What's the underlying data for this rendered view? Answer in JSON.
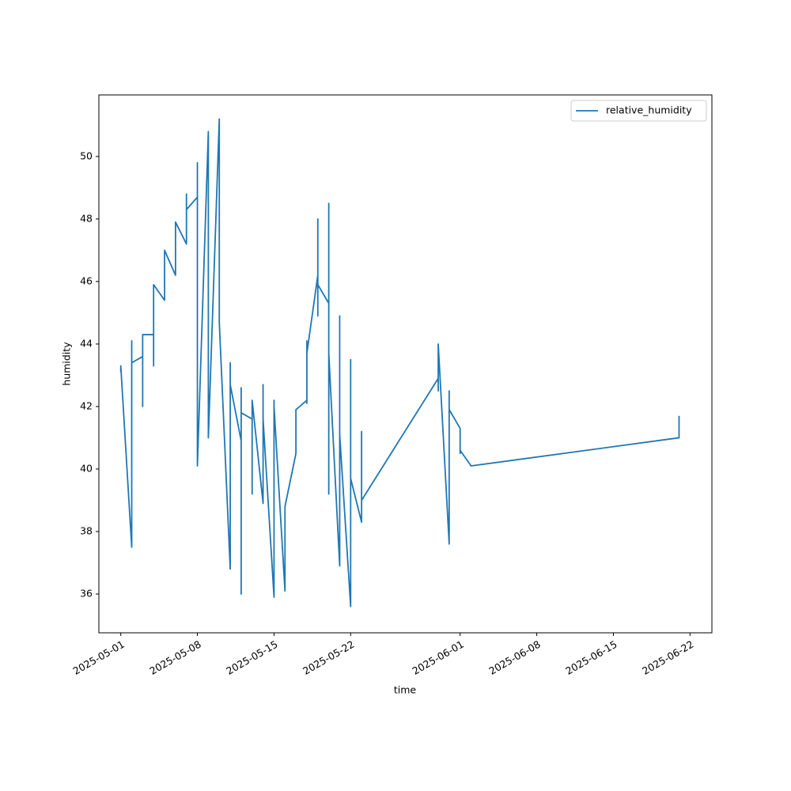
{
  "chart_data": {
    "type": "line",
    "xlabel": "time",
    "ylabel": "humidity",
    "legend": "upper right",
    "x": [
      "2025-05-01",
      "2025-05-01",
      "2025-05-02",
      "2025-05-02",
      "2025-05-02",
      "2025-05-02",
      "2025-05-02",
      "2025-05-02",
      "2025-05-02",
      "2025-05-03",
      "2025-05-03",
      "2025-05-03",
      "2025-05-03",
      "2025-05-03",
      "2025-05-03",
      "2025-05-03",
      "2025-05-04",
      "2025-05-04",
      "2025-05-04",
      "2025-05-04",
      "2025-05-04",
      "2025-05-04",
      "2025-05-04",
      "2025-05-05",
      "2025-05-05",
      "2025-05-05",
      "2025-05-05",
      "2025-05-05",
      "2025-05-06",
      "2025-05-06",
      "2025-05-06",
      "2025-05-06",
      "2025-05-06",
      "2025-05-06",
      "2025-05-07",
      "2025-05-07",
      "2025-05-07",
      "2025-05-07",
      "2025-05-07",
      "2025-05-07",
      "2025-05-07",
      "2025-05-08",
      "2025-05-08",
      "2025-05-08",
      "2025-05-08",
      "2025-05-08",
      "2025-05-08",
      "2025-05-08",
      "2025-05-08",
      "2025-05-08",
      "2025-05-09",
      "2025-05-09",
      "2025-05-09",
      "2025-05-09",
      "2025-05-09",
      "2025-05-09",
      "2025-05-09",
      "2025-05-10",
      "2025-05-10",
      "2025-05-10",
      "2025-05-10",
      "2025-05-10",
      "2025-05-11",
      "2025-05-11",
      "2025-05-11",
      "2025-05-11",
      "2025-05-11",
      "2025-05-11",
      "2025-05-12",
      "2025-05-12",
      "2025-05-12",
      "2025-05-12",
      "2025-05-12",
      "2025-05-12",
      "2025-05-13",
      "2025-05-13",
      "2025-05-13",
      "2025-05-13",
      "2025-05-13",
      "2025-05-13",
      "2025-05-13",
      "2025-05-14",
      "2025-05-14",
      "2025-05-14",
      "2025-05-14",
      "2025-05-14",
      "2025-05-14",
      "2025-05-15",
      "2025-05-15",
      "2025-05-15",
      "2025-05-15",
      "2025-05-15",
      "2025-05-16",
      "2025-05-16",
      "2025-05-17",
      "2025-05-17",
      "2025-05-18",
      "2025-05-18",
      "2025-05-18",
      "2025-05-18",
      "2025-05-18",
      "2025-05-19",
      "2025-05-19",
      "2025-05-19",
      "2025-05-19",
      "2025-05-19",
      "2025-05-19",
      "2025-05-19",
      "2025-05-19",
      "2025-05-19",
      "2025-05-20",
      "2025-05-20",
      "2025-05-20",
      "2025-05-20",
      "2025-05-20",
      "2025-05-20",
      "2025-05-20",
      "2025-05-21",
      "2025-05-21",
      "2025-05-21",
      "2025-05-21",
      "2025-05-21",
      "2025-05-21",
      "2025-05-22",
      "2025-05-22",
      "2025-05-22",
      "2025-05-22",
      "2025-05-22",
      "2025-05-23",
      "2025-05-23",
      "2025-05-23",
      "2025-05-30",
      "2025-05-30",
      "2025-05-30",
      "2025-05-30",
      "2025-05-31",
      "2025-05-31",
      "2025-05-31",
      "2025-05-31",
      "2025-05-31",
      "2025-05-31",
      "2025-05-31",
      "2025-05-31",
      "2025-06-01",
      "2025-06-01",
      "2025-06-01",
      "2025-06-01",
      "2025-06-01",
      "2025-06-01",
      "2025-06-02",
      "2025-06-21",
      "2025-06-21"
    ],
    "series": [
      {
        "name": "relative_humidity",
        "color": "#1f77b4",
        "values": [
          43.1,
          43.3,
          37.5,
          43.6,
          42.8,
          44.1,
          43.5,
          44.1,
          43.4,
          43.6,
          42.0,
          43.8,
          43.1,
          44.0,
          43.8,
          44.3,
          44.3,
          43.3,
          43.9,
          43.9,
          44.8,
          45.6,
          45.9,
          45.4,
          46.2,
          45.9,
          46.8,
          47.0,
          46.2,
          47.8,
          46.9,
          47.5,
          47.8,
          47.9,
          47.2,
          47.8,
          47.7,
          48.7,
          48.8,
          47.9,
          48.3,
          48.7,
          47.4,
          49.1,
          48.2,
          49.4,
          49.8,
          48.1,
          48.4,
          40.1,
          50.8,
          48.2,
          47.8,
          48.4,
          48.0,
          48.3,
          41.0,
          51.2,
          45.2,
          45.4,
          45.3,
          44.7,
          36.8,
          43.4,
          42.3,
          42.7,
          42.1,
          42.7,
          40.9,
          36.0,
          42.6,
          40.4,
          40.8,
          41.8,
          41.6,
          39.2,
          41.0,
          40.3,
          41.7,
          42.0,
          42.2,
          38.9,
          42.7,
          40.9,
          41.1,
          41.0,
          41.6,
          35.9,
          42.2,
          40.3,
          41.2,
          42.0,
          36.1,
          38.8,
          40.5,
          41.9,
          42.2,
          42.1,
          42.8,
          44.1,
          43.7,
          46.2,
          47.1,
          48.0,
          47.0,
          47.9,
          44.9,
          45.4,
          45.2,
          45.9,
          45.3,
          39.2,
          48.5,
          43.8,
          43.2,
          43.6,
          43.7,
          36.9,
          44.9,
          41.0,
          41.2,
          42.3,
          41.1,
          35.6,
          43.5,
          39.3,
          40.0,
          39.7,
          38.3,
          41.2,
          39.0,
          42.9,
          42.5,
          43.4,
          44.0,
          37.6,
          40.4,
          41.6,
          41.0,
          41.5,
          42.5,
          42.3,
          41.9,
          41.3,
          40.5,
          41.1,
          41.1,
          41.3,
          40.6,
          40.1,
          41.0,
          41.7
        ]
      }
    ],
    "xlim": [
      "2025-04-29",
      "2025-06-24"
    ],
    "xticks": [
      "2025-05-01",
      "2025-05-08",
      "2025-05-15",
      "2025-05-22",
      "2025-06-01",
      "2025-06-08",
      "2025-06-15",
      "2025-06-22"
    ],
    "ylim": [
      34.76,
      51.97
    ],
    "yticks": [
      36,
      38,
      40,
      42,
      44,
      46,
      48,
      50
    ]
  }
}
